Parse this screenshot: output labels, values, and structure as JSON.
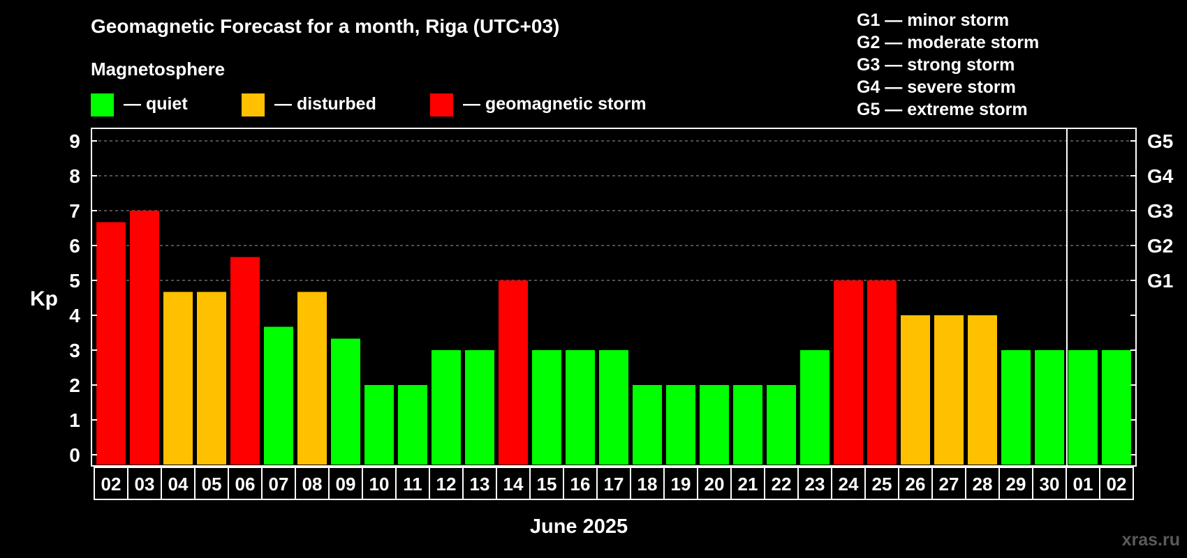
{
  "chart_data": {
    "type": "bar",
    "title": "Geomagnetic Forecast for a month, Riga (UTC+03)",
    "legend_title": "Magnetosphere",
    "legend": [
      {
        "key": "quiet",
        "label": "— quiet",
        "color": "#00ff00"
      },
      {
        "key": "disturbed",
        "label": "— disturbed",
        "color": "#ffc000"
      },
      {
        "key": "storm",
        "label": "— geomagnetic storm",
        "color": "#ff0000"
      }
    ],
    "storm_scale": [
      "G1 — minor storm",
      "G2 — moderate storm",
      "G3 — strong storm",
      "G4 — severe storm",
      "G5 — extreme storm"
    ],
    "ylabel": "Kp",
    "xlabel": "June 2025",
    "ylim": [
      0,
      9
    ],
    "yticks": [
      "0",
      "1",
      "2",
      "3",
      "4",
      "5",
      "6",
      "7",
      "8",
      "9"
    ],
    "right_ticks": [
      {
        "value": 5,
        "label": "G1"
      },
      {
        "value": 6,
        "label": "G2"
      },
      {
        "value": 7,
        "label": "G3"
      },
      {
        "value": 8,
        "label": "G4"
      },
      {
        "value": 9,
        "label": "G5"
      }
    ],
    "month_divider_after_index": 28,
    "categories": [
      "02",
      "03",
      "04",
      "05",
      "06",
      "07",
      "08",
      "09",
      "10",
      "11",
      "12",
      "13",
      "14",
      "15",
      "16",
      "17",
      "18",
      "19",
      "20",
      "21",
      "22",
      "23",
      "24",
      "25",
      "26",
      "27",
      "28",
      "29",
      "30",
      "01",
      "02"
    ],
    "values": [
      6.67,
      7,
      4.67,
      4.67,
      5.67,
      3.67,
      4.67,
      3.33,
      2,
      2,
      3,
      3,
      5,
      3,
      3,
      3,
      2,
      2,
      2,
      2,
      2,
      3,
      5,
      5,
      4,
      4,
      4,
      3,
      3,
      3,
      3
    ],
    "status": [
      "storm",
      "storm",
      "disturbed",
      "disturbed",
      "storm",
      "quiet",
      "disturbed",
      "quiet",
      "quiet",
      "quiet",
      "quiet",
      "quiet",
      "storm",
      "quiet",
      "quiet",
      "quiet",
      "quiet",
      "quiet",
      "quiet",
      "quiet",
      "quiet",
      "quiet",
      "storm",
      "storm",
      "disturbed",
      "disturbed",
      "disturbed",
      "quiet",
      "quiet",
      "quiet",
      "quiet"
    ],
    "grid": true
  },
  "watermark": "xras.ru"
}
